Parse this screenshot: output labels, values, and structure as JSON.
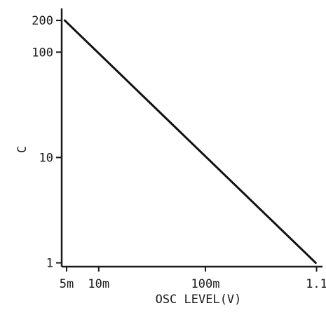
{
  "chart_data": {
    "type": "line",
    "title": "",
    "xlabel": "OSC LEVEL(V)",
    "ylabel": "C",
    "x_scale": "log",
    "y_scale": "log",
    "xlim": [
      0.0045,
      1.25
    ],
    "ylim": [
      0.92,
      260
    ],
    "grid": false,
    "legend": "none",
    "x_ticks": [
      {
        "value": 0.005,
        "label": "5m"
      },
      {
        "value": 0.01,
        "label": "10m"
      },
      {
        "value": 0.1,
        "label": "100m"
      },
      {
        "value": 1.1,
        "label": "1.1"
      }
    ],
    "y_ticks": [
      {
        "value": 1,
        "label": "1"
      },
      {
        "value": 10,
        "label": "10"
      },
      {
        "value": 100,
        "label": "100"
      },
      {
        "value": 200,
        "label": "200"
      }
    ],
    "series": [
      {
        "points": [
          {
            "x": 0.0048,
            "y": 200
          },
          {
            "x": 1.08,
            "y": 1
          }
        ]
      }
    ],
    "colors": {
      "line": "#111111",
      "axis": "#1a1a1a",
      "text": "#1a1a1a"
    }
  }
}
